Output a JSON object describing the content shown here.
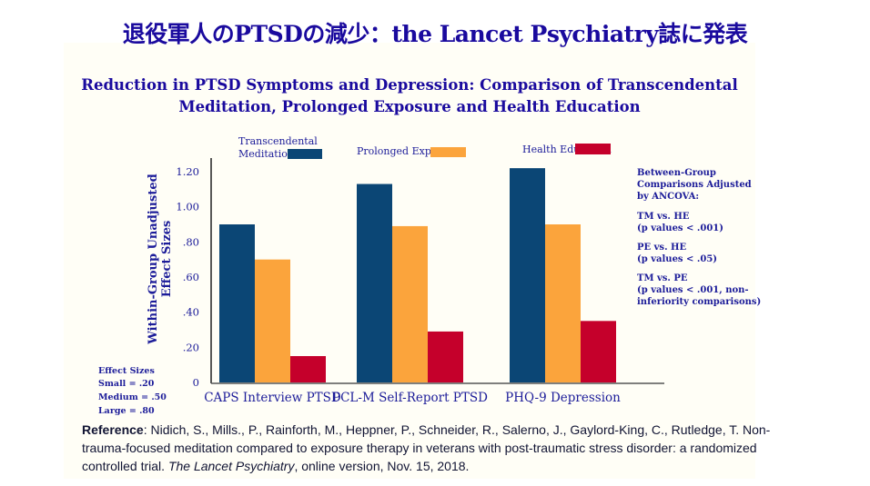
{
  "slide_title": "退役軍人のPTSDの減少：the Lancet Psychiatry誌に発表",
  "chart_data": {
    "type": "bar",
    "title": [
      "Reduction in PTSD Symptoms and Depression: Comparison of Transcendental",
      "Meditation, Prolonged Exposure and Health Education"
    ],
    "ylabel": [
      "Within-Group Unadjusted",
      "Effect Sizes"
    ],
    "xlabel": "",
    "ylim": [
      0,
      1.2
    ],
    "yticks": [
      0,
      0.2,
      0.4,
      0.6,
      0.8,
      1.0,
      1.2
    ],
    "ytick_labels": [
      "0",
      ".20",
      ".40",
      ".60",
      ".80",
      "1.00",
      "1.20"
    ],
    "categories": [
      "CAPS Interview PTSD",
      "PCL-M Self-Report PTSD",
      "PHQ-9 Depression"
    ],
    "series": [
      {
        "name": "Transcendental Meditation",
        "legend_lines": [
          "Transcendental",
          "Meditation"
        ],
        "color": "#0b4675",
        "values": [
          0.9,
          1.13,
          1.22
        ]
      },
      {
        "name": "Prolonged Exposure",
        "legend_lines": [
          "Prolonged Exposure"
        ],
        "color": "#fba43c",
        "values": [
          0.7,
          0.89,
          0.9
        ]
      },
      {
        "name": "Health Education",
        "legend_lines": [
          "Health Education"
        ],
        "color": "#c5002b",
        "values": [
          0.15,
          0.29,
          0.35
        ]
      }
    ],
    "grid": false,
    "legend_position": "top",
    "annotations": {
      "comparisons": [
        "Between-Group",
        "Comparisons Adjusted",
        "by ANCOVA:",
        "TM vs. HE",
        "(p values < .001)",
        "PE vs. HE",
        "(p values < .05)",
        "TM vs. PE",
        "(p values < .001, non-",
        "inferiority comparisons)"
      ],
      "effect_sizes": [
        "Effect Sizes",
        "Small = .20",
        "Medium = .50",
        "Large = .80"
      ]
    }
  },
  "reference": {
    "label": "Reference",
    "line1": ": Nidich, S., Mills., P., Rainforth, M., Heppner, P., Schneider, R., Salerno, J., Gaylord-King, C., Rutledge, T.  Non-",
    "line2": "trauma-focused meditation compared to exposure therapy in veterans with post-traumatic stress disorder: a randomized",
    "line3_pre": "controlled trial. ",
    "journal": "The Lancet Psychiatry",
    "line3_post": ", online version, Nov. 15, 2018."
  },
  "colors": {
    "title": "#1a0a9e",
    "text": "#1c1c99"
  }
}
